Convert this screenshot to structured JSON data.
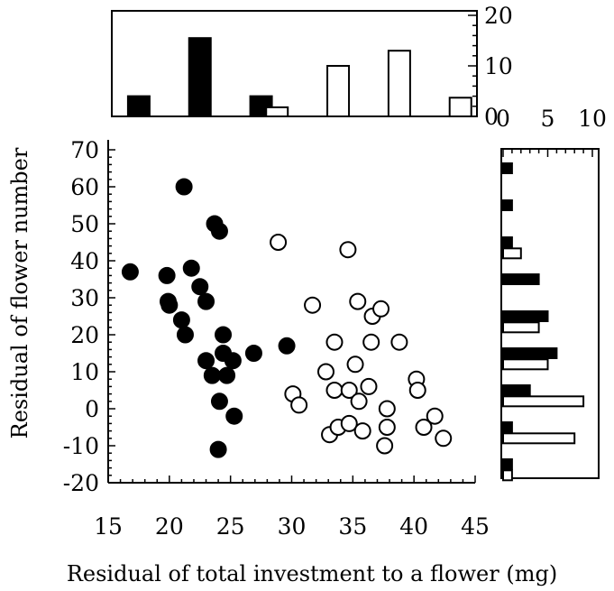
{
  "chart_data": {
    "type": "scatter",
    "xlabel": "Residual of total investment to a flower (mg)",
    "ylabel": "Residual of flower number",
    "xlim": [
      15,
      45
    ],
    "ylim": [
      -20,
      70
    ],
    "xticks": [
      "15",
      "20",
      "25",
      "30",
      "35",
      "40",
      "45"
    ],
    "yticks": [
      "-20",
      "-10",
      "0",
      "10",
      "20",
      "30",
      "40",
      "50",
      "60",
      "70"
    ],
    "series": [
      {
        "fill": "#000000",
        "points": [
          [
            16.8,
            37
          ],
          [
            19.8,
            36
          ],
          [
            19.9,
            29
          ],
          [
            20.0,
            28
          ],
          [
            21.2,
            60
          ],
          [
            21.0,
            24
          ],
          [
            21.3,
            20
          ],
          [
            21.8,
            38
          ],
          [
            22.5,
            33
          ],
          [
            23.0,
            29
          ],
          [
            23.0,
            13
          ],
          [
            23.5,
            9
          ],
          [
            23.7,
            50
          ],
          [
            24.1,
            48
          ],
          [
            24.1,
            2
          ],
          [
            24.0,
            -11
          ],
          [
            24.4,
            20
          ],
          [
            24.4,
            15
          ],
          [
            24.7,
            9
          ],
          [
            25.2,
            13
          ],
          [
            25.3,
            -2
          ],
          [
            26.9,
            15
          ],
          [
            29.6,
            17
          ]
        ]
      },
      {
        "fill": "#ffffff",
        "points": [
          [
            28.9,
            45
          ],
          [
            30.1,
            4
          ],
          [
            30.6,
            1
          ],
          [
            31.7,
            28
          ],
          [
            32.8,
            10
          ],
          [
            33.1,
            -7
          ],
          [
            33.5,
            18
          ],
          [
            33.5,
            5
          ],
          [
            33.8,
            -5
          ],
          [
            34.6,
            43
          ],
          [
            34.7,
            5
          ],
          [
            34.7,
            -4
          ],
          [
            35.2,
            12
          ],
          [
            35.4,
            29
          ],
          [
            35.5,
            2
          ],
          [
            35.8,
            -6
          ],
          [
            36.3,
            6
          ],
          [
            36.6,
            25
          ],
          [
            36.5,
            18
          ],
          [
            37.3,
            27
          ],
          [
            37.8,
            0
          ],
          [
            37.8,
            -5
          ],
          [
            37.6,
            -10
          ],
          [
            38.8,
            18
          ],
          [
            40.2,
            8
          ],
          [
            40.3,
            5
          ],
          [
            40.8,
            -5
          ],
          [
            41.7,
            -2
          ],
          [
            42.4,
            -8
          ]
        ]
      }
    ],
    "top_histogram": {
      "yticks": [
        "0",
        "10",
        "20"
      ],
      "ylim": [
        0,
        20
      ],
      "bars": [
        {
          "x": 17.5,
          "count": 4,
          "fill": "#000000"
        },
        {
          "x": 22.5,
          "count": 15.5,
          "fill": "#000000"
        },
        {
          "x": 27.5,
          "count": 4,
          "fill": "#000000"
        },
        {
          "x": 28.8,
          "count": 1.8,
          "fill": "#ffffff"
        },
        {
          "x": 33.8,
          "count": 10,
          "fill": "#ffffff"
        },
        {
          "x": 38.8,
          "count": 13,
          "fill": "#ffffff"
        },
        {
          "x": 43.8,
          "count": 3.7,
          "fill": "#ffffff"
        }
      ]
    },
    "right_histogram": {
      "xticks": [
        "0",
        "5",
        "10"
      ],
      "xlim": [
        0,
        10
      ],
      "bars": [
        {
          "y": 65,
          "count": 1,
          "fill": "#000000"
        },
        {
          "y": 55,
          "count": 1,
          "fill": "#000000"
        },
        {
          "y": 45,
          "count": 1,
          "fill": "#000000"
        },
        {
          "y": 42,
          "count": 2,
          "fill": "#ffffff"
        },
        {
          "y": 35,
          "count": 4,
          "fill": "#000000"
        },
        {
          "y": 25,
          "count": 5,
          "fill": "#000000"
        },
        {
          "y": 22,
          "count": 4,
          "fill": "#ffffff"
        },
        {
          "y": 15,
          "count": 6,
          "fill": "#000000"
        },
        {
          "y": 12,
          "count": 5,
          "fill": "#ffffff"
        },
        {
          "y": 5,
          "count": 3,
          "fill": "#000000"
        },
        {
          "y": 2,
          "count": 9,
          "fill": "#ffffff"
        },
        {
          "y": -5,
          "count": 1,
          "fill": "#000000"
        },
        {
          "y": -8,
          "count": 8,
          "fill": "#ffffff"
        },
        {
          "y": -15,
          "count": 1,
          "fill": "#000000"
        },
        {
          "y": -18,
          "count": 1,
          "fill": "#ffffff"
        }
      ]
    }
  }
}
